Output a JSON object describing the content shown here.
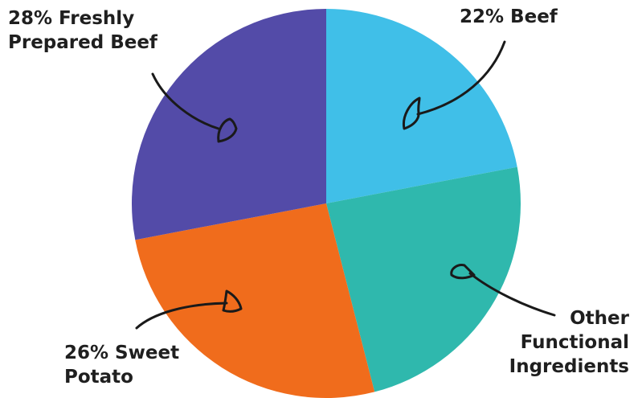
{
  "chart_data": {
    "type": "pie",
    "slices": [
      {
        "label": "22% Beef",
        "value": 22,
        "color": "#40bfe8"
      },
      {
        "label": "Other Functional Ingredients",
        "value": 24,
        "color": "#2fb8ad"
      },
      {
        "label": "26% Sweet Potato",
        "value": 26,
        "color": "#f06c1c"
      },
      {
        "label": "28% Freshly Prepared Beef",
        "value": 28,
        "color": "#534ba8"
      }
    ],
    "label_lines": [
      [
        "22% Beef"
      ],
      [
        "Other",
        "Functional",
        "Ingredients"
      ],
      [
        "26% Sweet",
        "Potato"
      ],
      [
        "28% Freshly",
        "Prepared Beef"
      ]
    ],
    "start_angle_deg": 0,
    "direction": "clockwise",
    "annotation_style": "hand-drawn arrows"
  }
}
